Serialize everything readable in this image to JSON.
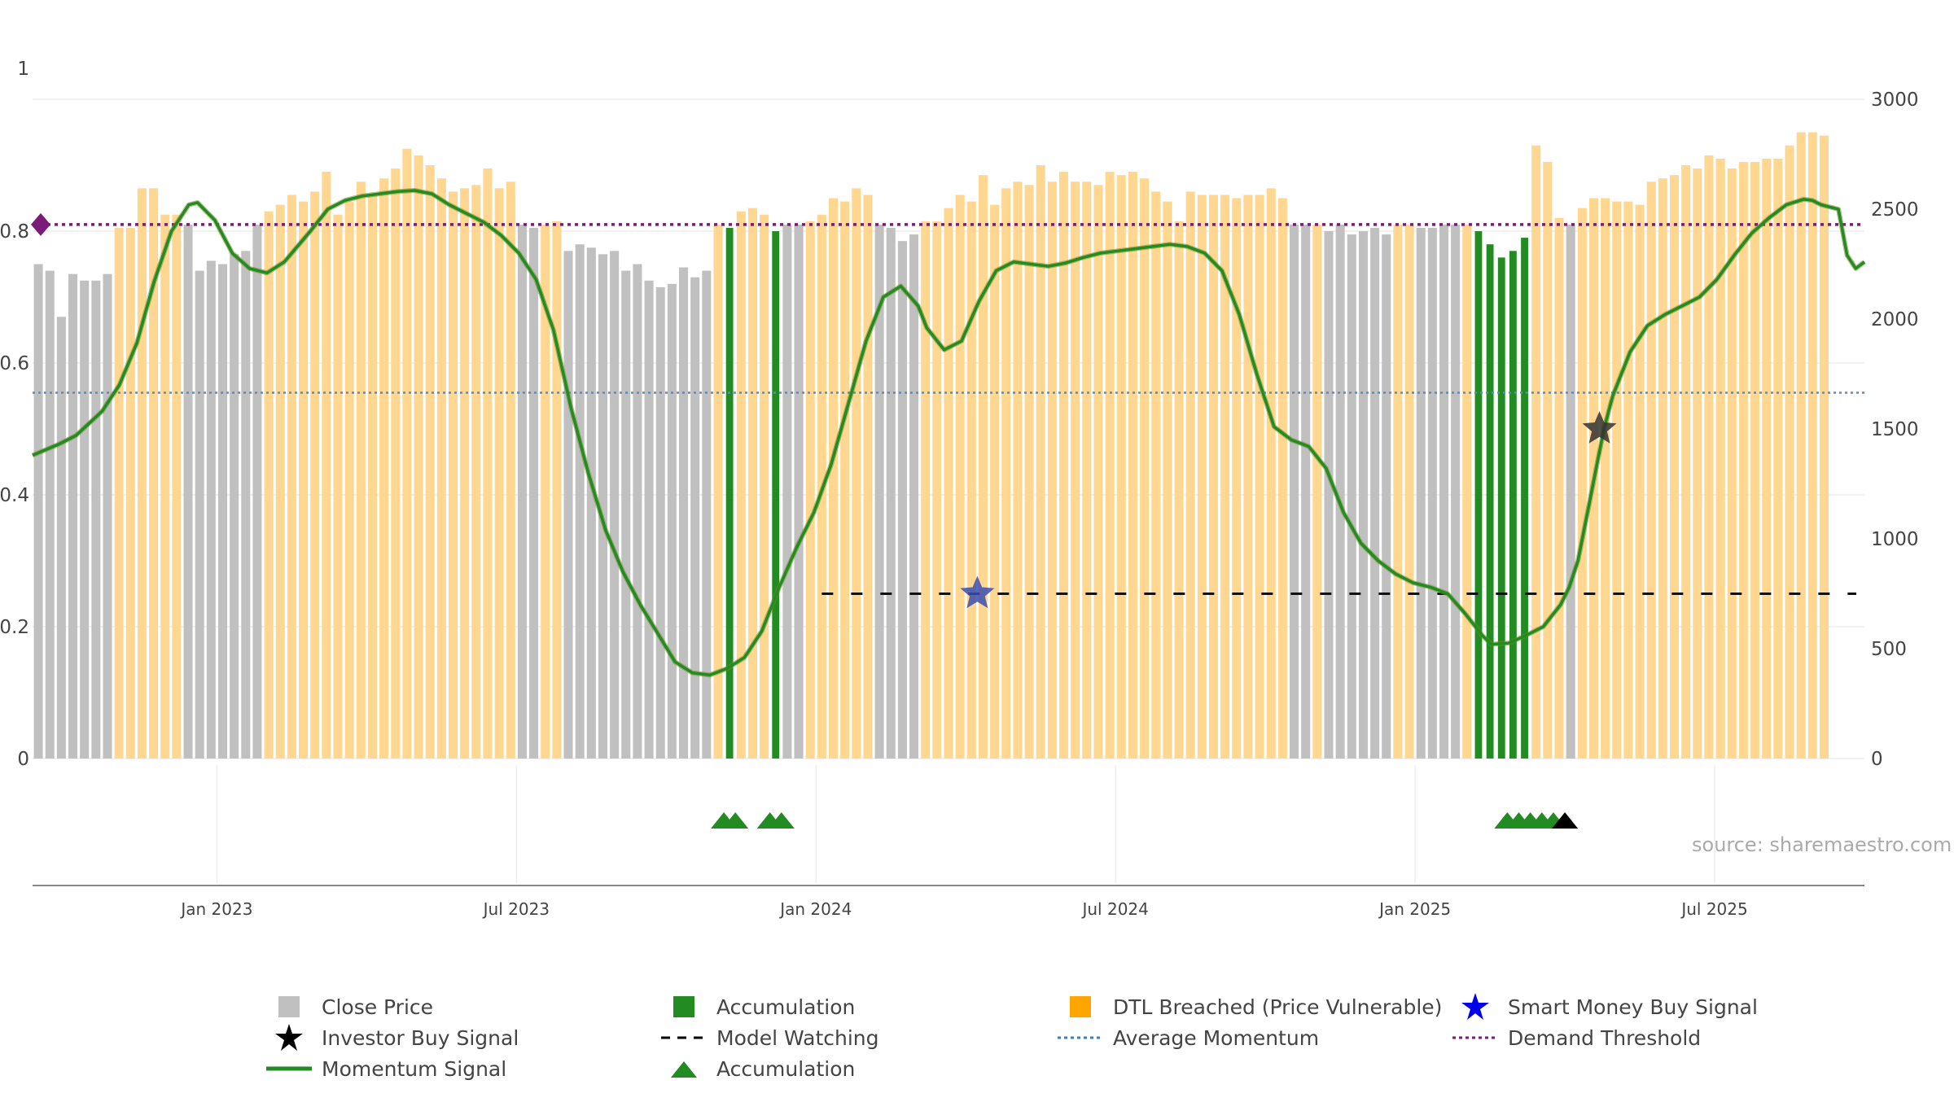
{
  "chart_data": {
    "type": "bar",
    "title": "",
    "xlabel": "",
    "ylabel": "",
    "ylim_left": [
      0,
      1
    ],
    "ylim_right": [
      0,
      3000
    ],
    "left_ticks": [
      "0",
      "0.2",
      "0.4",
      "0.6",
      "0.8",
      "1"
    ],
    "right_ticks": [
      "0",
      "500",
      "1000",
      "1500",
      "2000",
      "2500",
      "3000"
    ],
    "x_ticks": [
      "Jan 2023",
      "Jul 2023",
      "Jan 2024",
      "Jul 2024",
      "Jan 2025",
      "Jul 2025"
    ],
    "x_tick_weeks": [
      16,
      42,
      68,
      94,
      120,
      146
    ],
    "weeks": 159,
    "thresholds": {
      "demand_threshold": 0.81,
      "average_momentum": 0.555,
      "model_watching": 0.25
    },
    "bars": {
      "segments": [
        {
          "kind": "grey",
          "values": [
            0.75,
            0.74,
            0.67,
            0.735,
            0.725,
            0.725,
            0.735
          ]
        },
        {
          "kind": "orange",
          "values": [
            0.805,
            0.805
          ]
        },
        {
          "kind": "orange",
          "values": [
            0.865,
            0.865,
            0.825,
            0.825
          ]
        },
        {
          "kind": "grey",
          "values": [
            0.81,
            0.74,
            0.755,
            0.75,
            0.765,
            0.77,
            0.81
          ]
        },
        {
          "kind": "orange",
          "values": [
            0.83,
            0.84,
            0.855,
            0.845,
            0.86,
            0.89,
            0.825,
            0.845,
            0.875,
            0.855,
            0.88,
            0.895,
            0.925,
            0.915,
            0.9,
            0.88,
            0.86,
            0.865,
            0.87,
            0.895,
            0.865,
            0.875
          ]
        },
        {
          "kind": "grey",
          "values": [
            0.81,
            0.805
          ]
        },
        {
          "kind": "orange",
          "values": [
            0.81,
            0.815
          ]
        },
        {
          "kind": "grey",
          "values": [
            0.77,
            0.78,
            0.775,
            0.765,
            0.77,
            0.74,
            0.75,
            0.725,
            0.715,
            0.72,
            0.745,
            0.73,
            0.74
          ]
        },
        {
          "kind": "orange",
          "values": [
            0.81
          ]
        },
        {
          "kind": "green",
          "values": [
            0.805
          ]
        },
        {
          "kind": "orange",
          "values": [
            0.83,
            0.835,
            0.825
          ]
        },
        {
          "kind": "green",
          "values": [
            0.8
          ]
        },
        {
          "kind": "grey",
          "values": [
            0.81,
            0.81
          ]
        },
        {
          "kind": "orange",
          "values": [
            0.815,
            0.825,
            0.85,
            0.845,
            0.865,
            0.855
          ]
        },
        {
          "kind": "grey",
          "values": [
            0.81,
            0.805,
            0.785,
            0.795
          ]
        },
        {
          "kind": "orange",
          "values": [
            0.815,
            0.815,
            0.835,
            0.855,
            0.845,
            0.885,
            0.84,
            0.865,
            0.875,
            0.87,
            0.9,
            0.875,
            0.89,
            0.875,
            0.875,
            0.87,
            0.89,
            0.885,
            0.89,
            0.88,
            0.86,
            0.845,
            0.815,
            0.86,
            0.855,
            0.855,
            0.855,
            0.85,
            0.855,
            0.855,
            0.865,
            0.85
          ]
        },
        {
          "kind": "grey",
          "values": [
            0.81,
            0.81
          ]
        },
        {
          "kind": "orange",
          "values": [
            0.81
          ]
        },
        {
          "kind": "grey",
          "values": [
            0.8,
            0.81,
            0.795,
            0.8,
            0.805,
            0.795
          ]
        },
        {
          "kind": "orange",
          "values": [
            0.81,
            0.81
          ]
        },
        {
          "kind": "grey",
          "values": [
            0.805,
            0.805,
            0.81,
            0.81
          ]
        },
        {
          "kind": "orange",
          "values": [
            0.81
          ]
        },
        {
          "kind": "green",
          "values": [
            0.8,
            0.78,
            0.76,
            0.77,
            0.79
          ]
        },
        {
          "kind": "orange",
          "values": [
            0.93,
            0.905,
            0.82
          ]
        },
        {
          "kind": "grey",
          "values": [
            0.81
          ]
        },
        {
          "kind": "orange",
          "values": [
            0.835,
            0.85,
            0.85,
            0.845,
            0.845,
            0.84,
            0.875,
            0.88,
            0.885,
            0.9,
            0.895,
            0.915,
            0.91,
            0.895,
            0.905,
            0.905,
            0.91,
            0.91,
            0.93,
            0.95,
            0.95,
            0.945
          ]
        }
      ]
    },
    "momentum": [
      [
        0,
        1380
      ],
      [
        3,
        1430
      ],
      [
        5,
        1470
      ],
      [
        8,
        1580
      ],
      [
        10,
        1700
      ],
      [
        12,
        1890
      ],
      [
        14,
        2170
      ],
      [
        16,
        2400
      ],
      [
        18,
        2520
      ],
      [
        19,
        2530
      ],
      [
        21,
        2450
      ],
      [
        23,
        2300
      ],
      [
        25,
        2230
      ],
      [
        27,
        2210
      ],
      [
        29,
        2260
      ],
      [
        32,
        2400
      ],
      [
        34,
        2500
      ],
      [
        36,
        2540
      ],
      [
        38,
        2560
      ],
      [
        40,
        2570
      ],
      [
        42,
        2580
      ],
      [
        44,
        2585
      ],
      [
        46,
        2570
      ],
      [
        48,
        2520
      ],
      [
        50,
        2480
      ],
      [
        52,
        2440
      ],
      [
        54,
        2380
      ],
      [
        56,
        2300
      ],
      [
        58,
        2180
      ],
      [
        60,
        1950
      ],
      [
        62,
        1600
      ],
      [
        64,
        1300
      ],
      [
        66,
        1040
      ],
      [
        68,
        850
      ],
      [
        70,
        700
      ],
      [
        72,
        570
      ],
      [
        74,
        440
      ],
      [
        76,
        390
      ],
      [
        78,
        380
      ],
      [
        80,
        410
      ],
      [
        82,
        460
      ],
      [
        84,
        580
      ],
      [
        86,
        780
      ],
      [
        88,
        960
      ],
      [
        90,
        1120
      ],
      [
        92,
        1340
      ],
      [
        94,
        1620
      ],
      [
        96,
        1900
      ],
      [
        98,
        2100
      ],
      [
        100,
        2150
      ],
      [
        102,
        2060
      ],
      [
        103,
        1960
      ],
      [
        105,
        1860
      ],
      [
        107,
        1900
      ],
      [
        109,
        2080
      ],
      [
        111,
        2220
      ],
      [
        113,
        2260
      ],
      [
        115,
        2250
      ],
      [
        117,
        2240
      ],
      [
        119,
        2255
      ],
      [
        121,
        2280
      ],
      [
        123,
        2300
      ],
      [
        125,
        2310
      ],
      [
        127,
        2320
      ],
      [
        129,
        2330
      ],
      [
        131,
        2340
      ],
      [
        133,
        2330
      ],
      [
        135,
        2300
      ],
      [
        137,
        2220
      ],
      [
        139,
        2020
      ],
      [
        141,
        1750
      ],
      [
        143,
        1510
      ],
      [
        145,
        1450
      ],
      [
        147,
        1420
      ],
      [
        149,
        1320
      ],
      [
        151,
        1120
      ],
      [
        153,
        980
      ],
      [
        155,
        900
      ],
      [
        157,
        840
      ],
      [
        159,
        800
      ],
      [
        161,
        780
      ],
      [
        163,
        750
      ],
      [
        165,
        660
      ],
      [
        167,
        560
      ],
      [
        168,
        520
      ],
      [
        170,
        525
      ],
      [
        172,
        560
      ],
      [
        174,
        600
      ],
      [
        176,
        700
      ],
      [
        177,
        780
      ],
      [
        178,
        900
      ],
      [
        179,
        1100
      ],
      [
        180,
        1300
      ],
      [
        181,
        1500
      ],
      [
        182,
        1650
      ],
      [
        184,
        1850
      ],
      [
        186,
        1970
      ],
      [
        188,
        2020
      ],
      [
        190,
        2060
      ],
      [
        192,
        2100
      ],
      [
        194,
        2180
      ],
      [
        196,
        2290
      ],
      [
        198,
        2390
      ],
      [
        200,
        2460
      ],
      [
        202,
        2520
      ],
      [
        204,
        2545
      ],
      [
        205,
        2540
      ],
      [
        206,
        2520
      ],
      [
        208,
        2500
      ],
      [
        209,
        2290
      ],
      [
        210,
        2230
      ],
      [
        211,
        2260
      ]
    ],
    "momentum_domain": [
      0,
      211
    ],
    "signals": {
      "smart_money_buy": {
        "week": 81.5,
        "value": 0.25
      },
      "investor_buy": {
        "week": 135.5,
        "value": 0.5
      },
      "accumulation_triangles": [
        59.5,
        60.5,
        63.5,
        64.5,
        127.5,
        128.5,
        129.5,
        130.5,
        131.5
      ],
      "black_triangles": [
        132.5
      ],
      "model_watching_start_week": 68
    },
    "colors": {
      "close_price": "#c0c0c0",
      "accumulation": "#228B22",
      "dtl_breached": "#FFD58A",
      "momentum": "#228B22",
      "average_momentum": "#5B8DB8",
      "demand_threshold": "#7B1A78",
      "smart_money": "#0000EE",
      "investor": "#000000"
    }
  },
  "source_text": "source: sharemaestro.com",
  "legend": [
    {
      "label": "Close Price",
      "icon": "square-icon",
      "color": "#c0c0c0"
    },
    {
      "label": "Accumulation",
      "icon": "square-icon",
      "color": "#228B22"
    },
    {
      "label": "DTL Breached (Price Vulnerable)",
      "icon": "square-icon",
      "color": "#FFA500"
    },
    {
      "label": "Smart Money Buy Signal",
      "icon": "star-icon",
      "color": "#0000EE"
    },
    {
      "label": "Investor Buy Signal",
      "icon": "star-icon",
      "color": "#000000"
    },
    {
      "label": "Model Watching",
      "icon": "dash-line-icon",
      "color": "#000000"
    },
    {
      "label": "Average Momentum",
      "icon": "dotted-line-icon",
      "color": "#3B7FBF"
    },
    {
      "label": "Demand Threshold",
      "icon": "dotted-line-icon",
      "color": "#7B1A78"
    },
    {
      "label": "Momentum Signal",
      "icon": "solid-line-icon",
      "color": "#228B22"
    },
    {
      "label": "Accumulation",
      "icon": "triangle-icon",
      "color": "#228B22"
    }
  ]
}
